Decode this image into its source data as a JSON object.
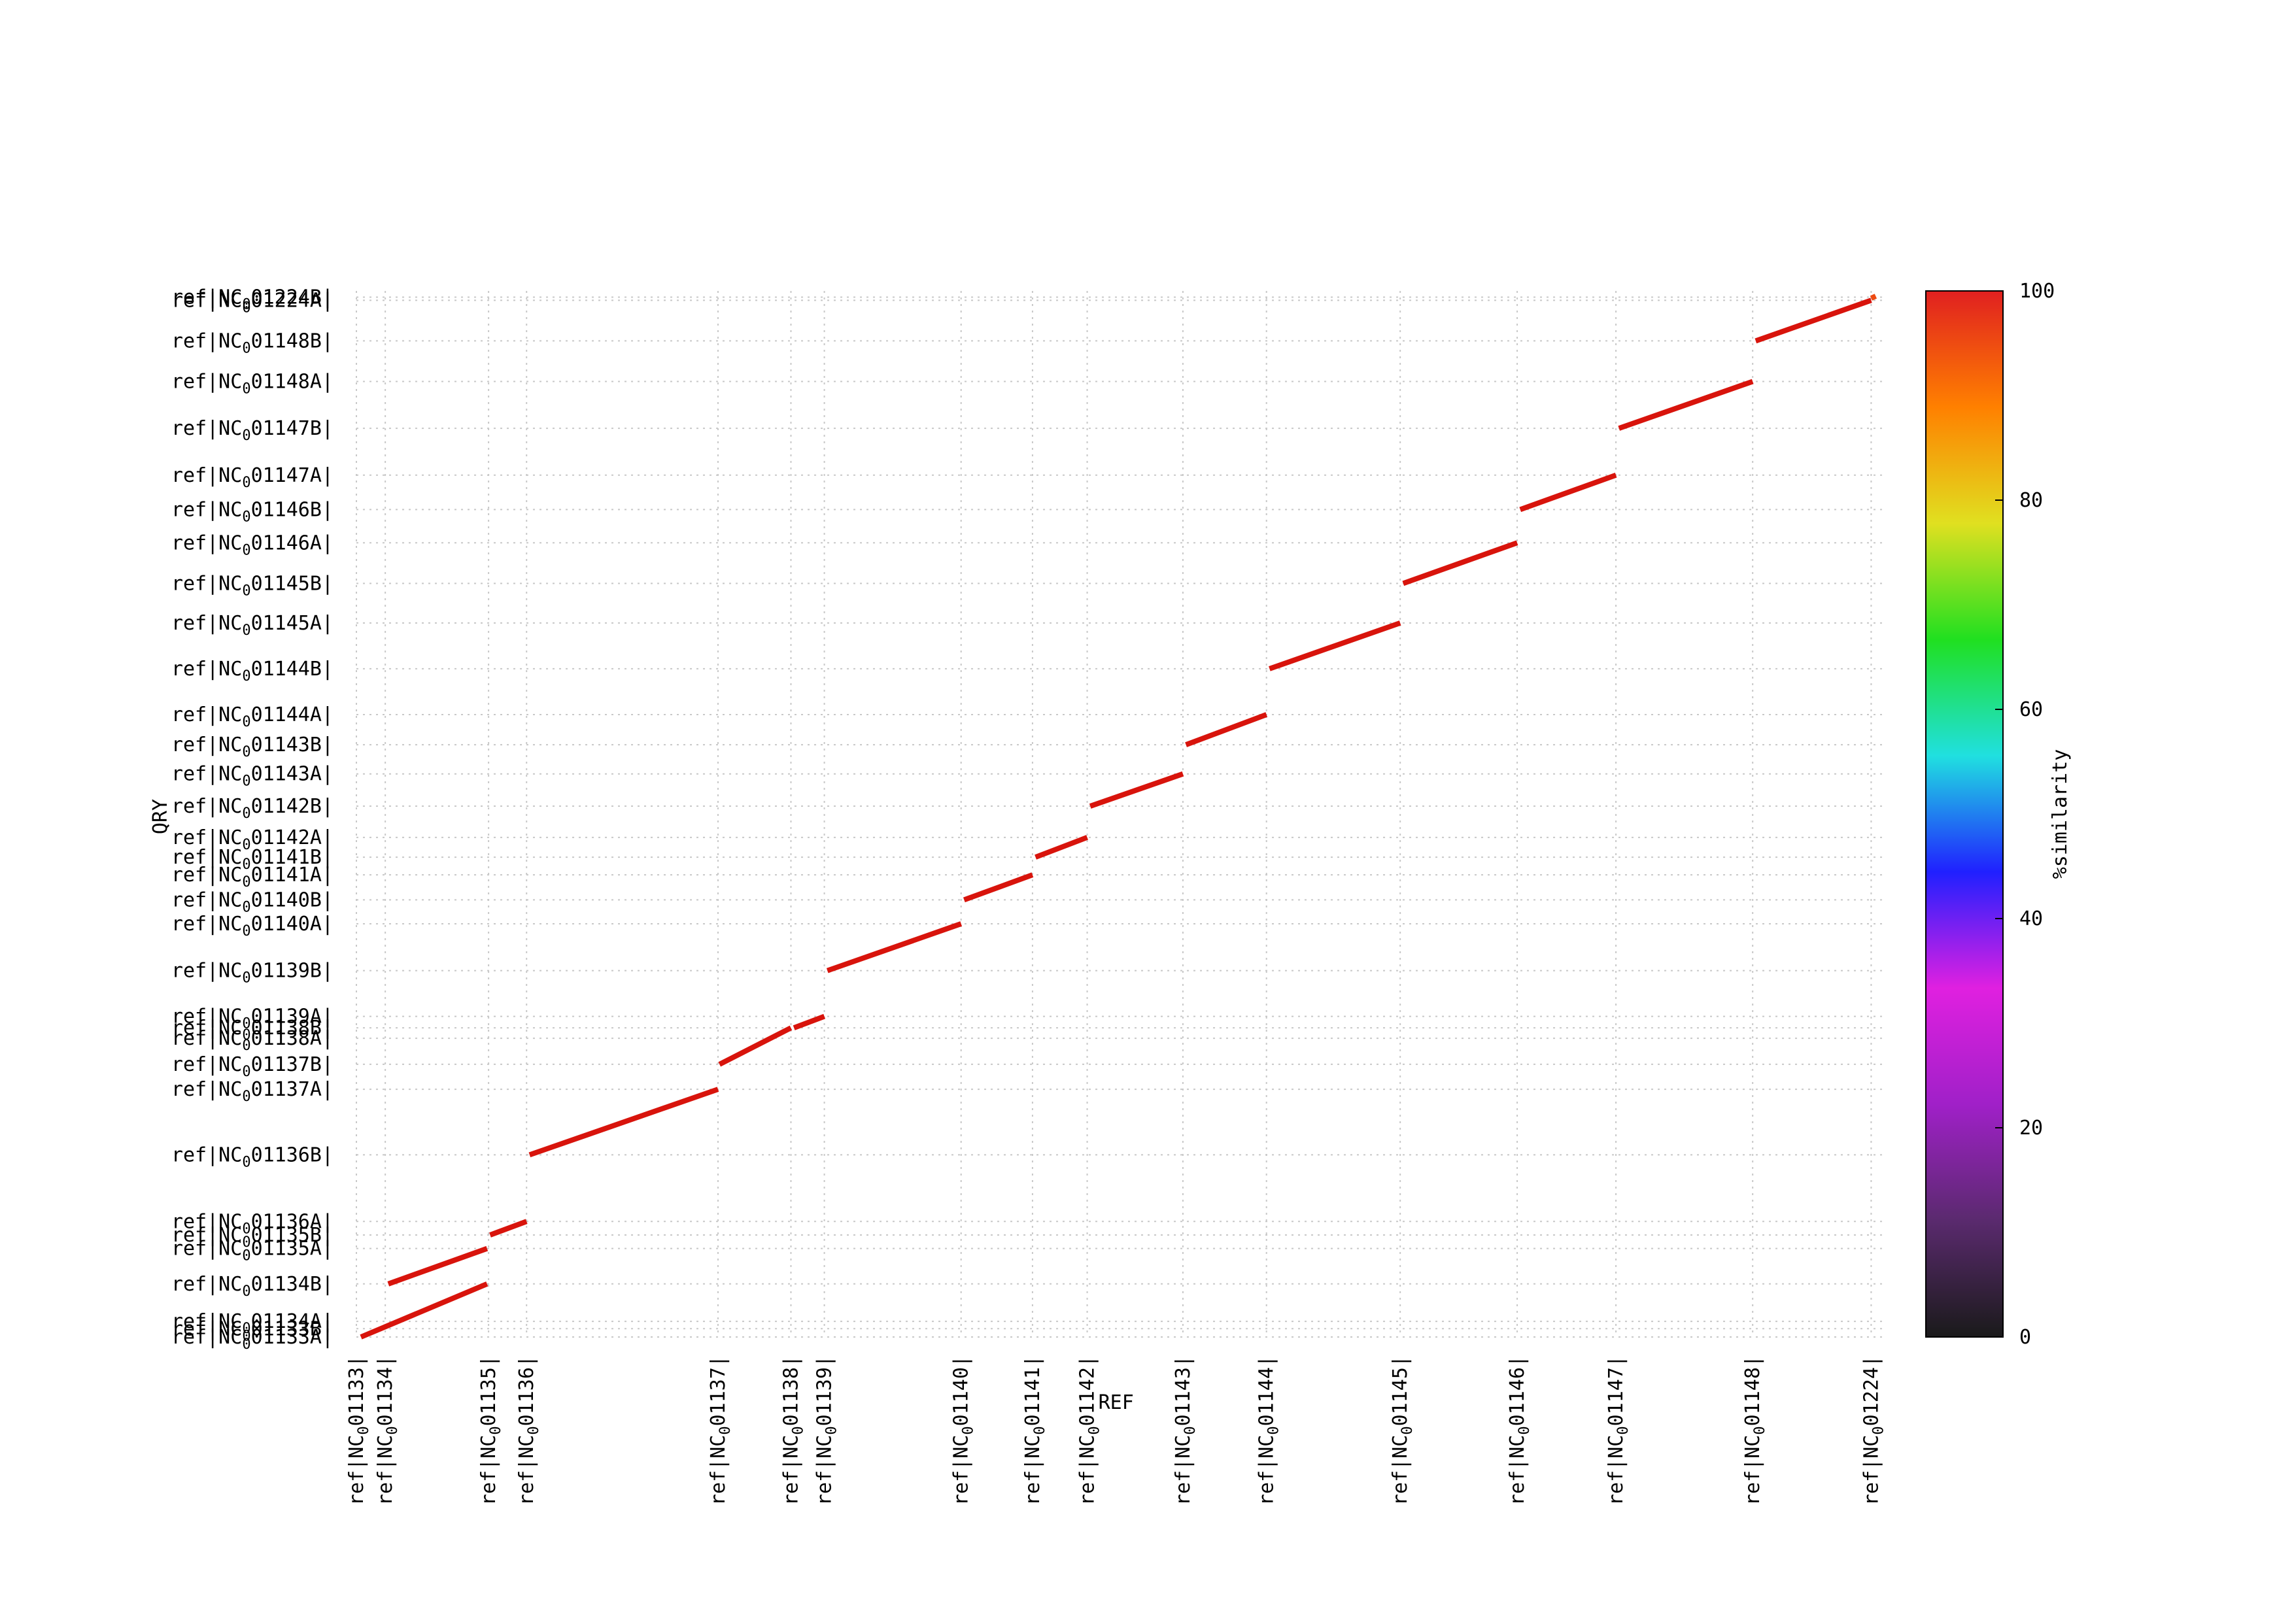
{
  "chart_data": {
    "type": "scatter",
    "title": "",
    "xlabel": "REF",
    "ylabel": "QRY",
    "grid": true,
    "x_ticks": [
      "ref|NC_01133|",
      "ref|NC_01134|",
      "ref|NC_01135|",
      "ref|NC_01136|",
      "ref|NC_01137|",
      "ref|NC_01138|",
      "ref|NC_01139|",
      "ref|NC_01140|",
      "ref|NC_01141|",
      "ref|NC_01142|",
      "ref|NC_01143|",
      "ref|NC_01144|",
      "ref|NC_01145|",
      "ref|NC_01146|",
      "ref|NC_01147|",
      "ref|NC_01148|",
      "ref|NC_01224|"
    ],
    "x_tick_values": [
      0.0,
      0.019,
      0.087,
      0.112,
      0.238,
      0.286,
      0.308,
      0.398,
      0.445,
      0.481,
      0.544,
      0.599,
      0.687,
      0.764,
      0.829,
      0.919,
      0.997
    ],
    "y_ticks": [
      "ref|NC_01133A|",
      "ref|NC_01133B|",
      "ref|NC_01134A|",
      "ref|NC_01134B|",
      "ref|NC_01135A|",
      "ref|NC_01135B|",
      "ref|NC_01136A|",
      "ref|NC_01136B|",
      "ref|NC_01137A|",
      "ref|NC_01137B|",
      "ref|NC_01138A|",
      "ref|NC_01138B|",
      "ref|NC_01139A|",
      "ref|NC_01139B|",
      "ref|NC_01140A|",
      "ref|NC_01140B|",
      "ref|NC_01141A|",
      "ref|NC_01141B|",
      "ref|NC_01142A|",
      "ref|NC_01142B|",
      "ref|NC_01143A|",
      "ref|NC_01143B|",
      "ref|NC_01144A|",
      "ref|NC_01144B|",
      "ref|NC_01145A|",
      "ref|NC_01145B|",
      "ref|NC_01146A|",
      "ref|NC_01146B|",
      "ref|NC_01147A|",
      "ref|NC_01147B|",
      "ref|NC_01148A|",
      "ref|NC_01148B|",
      "ref|NC_01224A|",
      "ref|NC_01224B|"
    ],
    "y_tick_values": [
      0.0,
      0.008,
      0.015,
      0.051,
      0.085,
      0.098,
      0.111,
      0.175,
      0.238,
      0.262,
      0.287,
      0.297,
      0.308,
      0.352,
      0.397,
      0.42,
      0.444,
      0.461,
      0.48,
      0.51,
      0.541,
      0.569,
      0.598,
      0.642,
      0.686,
      0.724,
      0.763,
      0.795,
      0.828,
      0.873,
      0.918,
      0.957,
      0.996,
      0.999
    ],
    "xlim": [
      0,
      1.005
    ],
    "ylim": [
      0,
      1.005
    ],
    "segments": [
      {
        "x": [
          0.003,
          0.086
        ],
        "y": [
          0.0,
          0.051
        ],
        "similarity": 99
      },
      {
        "x": [
          0.021,
          0.086
        ],
        "y": [
          0.051,
          0.085
        ],
        "similarity": 99
      },
      {
        "x": [
          0.088,
          0.112
        ],
        "y": [
          0.098,
          0.111
        ],
        "similarity": 99
      },
      {
        "x": [
          0.114,
          0.238
        ],
        "y": [
          0.175,
          0.238
        ],
        "similarity": 99
      },
      {
        "x": [
          0.239,
          0.286
        ],
        "y": [
          0.262,
          0.297
        ],
        "similarity": 99
      },
      {
        "x": [
          0.288,
          0.308
        ],
        "y": [
          0.297,
          0.308
        ],
        "similarity": 99
      },
      {
        "x": [
          0.31,
          0.398
        ],
        "y": [
          0.352,
          0.397
        ],
        "similarity": 99
      },
      {
        "x": [
          0.4,
          0.445
        ],
        "y": [
          0.42,
          0.444
        ],
        "similarity": 99
      },
      {
        "x": [
          0.447,
          0.481
        ],
        "y": [
          0.461,
          0.48
        ],
        "similarity": 99
      },
      {
        "x": [
          0.483,
          0.544
        ],
        "y": [
          0.51,
          0.541
        ],
        "similarity": 99
      },
      {
        "x": [
          0.546,
          0.599
        ],
        "y": [
          0.569,
          0.598
        ],
        "similarity": 99
      },
      {
        "x": [
          0.601,
          0.687
        ],
        "y": [
          0.642,
          0.686
        ],
        "similarity": 99
      },
      {
        "x": [
          0.689,
          0.764
        ],
        "y": [
          0.724,
          0.763
        ],
        "similarity": 99
      },
      {
        "x": [
          0.766,
          0.829
        ],
        "y": [
          0.795,
          0.828
        ],
        "similarity": 99
      },
      {
        "x": [
          0.831,
          0.919
        ],
        "y": [
          0.873,
          0.918
        ],
        "similarity": 99
      },
      {
        "x": [
          0.921,
          0.997
        ],
        "y": [
          0.957,
          0.996
        ],
        "similarity": 99
      },
      {
        "x": [
          0.997,
          1.0
        ],
        "y": [
          0.998,
          1.0
        ],
        "similarity": 95
      }
    ],
    "colorbar": {
      "label": "%similarity",
      "ticks": [
        "0",
        "20",
        "40",
        "60",
        "80",
        "100"
      ],
      "range": [
        0,
        100
      ],
      "colors": [
        "#1a1a1a",
        "#5a2a6e",
        "#a020c8",
        "#e020e0",
        "#2020ff",
        "#20e0e0",
        "#20e020",
        "#e0e020",
        "#ff8000",
        "#e02020"
      ]
    },
    "line_color": "#d8140c"
  }
}
